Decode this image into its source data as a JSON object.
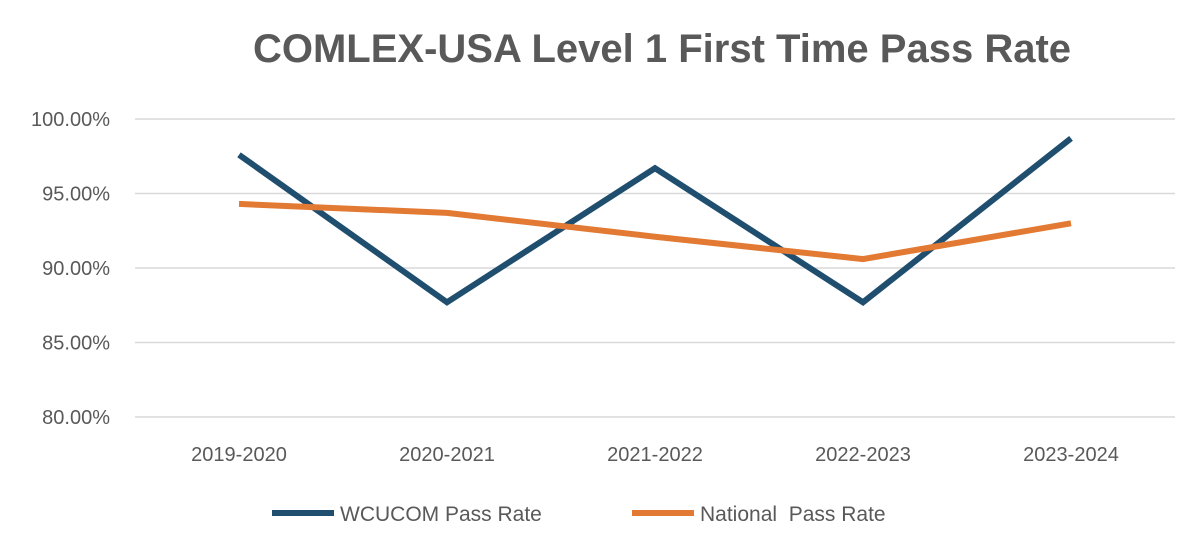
{
  "chart_data": {
    "type": "line",
    "title": "COMLEX-USA Level 1 First Time Pass Rate",
    "xlabel": "",
    "ylabel": "",
    "categories": [
      "2019-2020",
      "2020-2021",
      "2021-2022",
      "2022-2023",
      "2023-2024"
    ],
    "ylim": [
      80,
      100
    ],
    "yticks": [
      80,
      85,
      90,
      95,
      100
    ],
    "ytick_labels": [
      "80.00%",
      "85.00%",
      "90.00%",
      "95.00%",
      "100.00%"
    ],
    "grid": true,
    "legend_position": "bottom",
    "series": [
      {
        "name": "WCUCOM Pass Rate",
        "color": "#1f4e6e",
        "values": [
          97.6,
          87.7,
          96.7,
          87.7,
          98.7
        ]
      },
      {
        "name": "National  Pass Rate",
        "color": "#e27a34",
        "values": [
          94.3,
          93.7,
          92.1,
          90.6,
          93.0
        ]
      }
    ]
  }
}
